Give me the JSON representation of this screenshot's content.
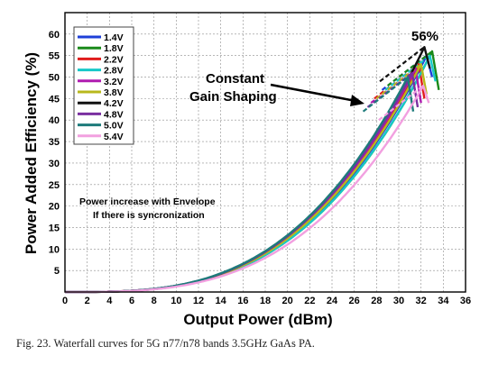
{
  "chart_data": {
    "type": "line",
    "ylabel": "Power Added Efficiency (%)",
    "xlabel": "Output Power (dBm)",
    "xlim": [
      0,
      36
    ],
    "ylim": [
      0,
      65
    ],
    "xticks": [
      "0",
      "2",
      "4",
      "6",
      "8",
      "10",
      "12",
      "14",
      "16",
      "18",
      "20",
      "22",
      "24",
      "26",
      "28",
      "30",
      "32",
      "34",
      "36"
    ],
    "yticks": [
      "5",
      "10",
      "15",
      "20",
      "25",
      "30",
      "35",
      "40",
      "45",
      "50",
      "55",
      "60"
    ],
    "grid": true,
    "legend_position": "top-left",
    "annotations": {
      "peak": "56%",
      "constant_gain_line1": "Constant",
      "constant_gain_line2": "Gain Shaping",
      "note_line1": "Power increase with Envelope",
      "note_line2": "If there is syncronization"
    },
    "series": [
      {
        "name": "1.4V",
        "color": "#1e3fd8",
        "peak_x": 32.5,
        "peak_y": 55,
        "end_x": 33.0,
        "end_y": 50
      },
      {
        "name": "1.8V",
        "color": "#1a8a1a",
        "peak_x": 33.0,
        "peak_y": 56,
        "end_x": 33.6,
        "end_y": 47
      },
      {
        "name": "2.2V",
        "color": "#e01c1c",
        "peak_x": 31.8,
        "peak_y": 53,
        "end_x": 32.3,
        "end_y": 45
      },
      {
        "name": "2.8V",
        "color": "#16c8c8",
        "peak_x": 32.8,
        "peak_y": 55,
        "end_x": 33.3,
        "end_y": 49
      },
      {
        "name": "3.2V",
        "color": "#b01cb0",
        "peak_x": 31.5,
        "peak_y": 52,
        "end_x": 32.0,
        "end_y": 44
      },
      {
        "name": "3.8V",
        "color": "#b8b81c",
        "peak_x": 32.0,
        "peak_y": 53,
        "end_x": 32.5,
        "end_y": 46
      },
      {
        "name": "4.2V",
        "color": "#111111",
        "peak_x": 32.3,
        "peak_y": 57,
        "end_x": 32.8,
        "end_y": 52
      },
      {
        "name": "4.8V",
        "color": "#7a2fa0",
        "peak_x": 31.2,
        "peak_y": 51,
        "end_x": 31.7,
        "end_y": 43
      },
      {
        "name": "5.0V",
        "color": "#1e7b7b",
        "peak_x": 30.8,
        "peak_y": 50,
        "end_x": 31.3,
        "end_y": 42
      },
      {
        "name": "5.4V",
        "color": "#f2a0e0",
        "peak_x": 32.2,
        "peak_y": 48,
        "end_x": 32.7,
        "end_y": 44
      }
    ]
  },
  "caption": "Fig. 23. Waterfall curves for 5G n77/n78 bands 3.5GHz GaAs PA."
}
